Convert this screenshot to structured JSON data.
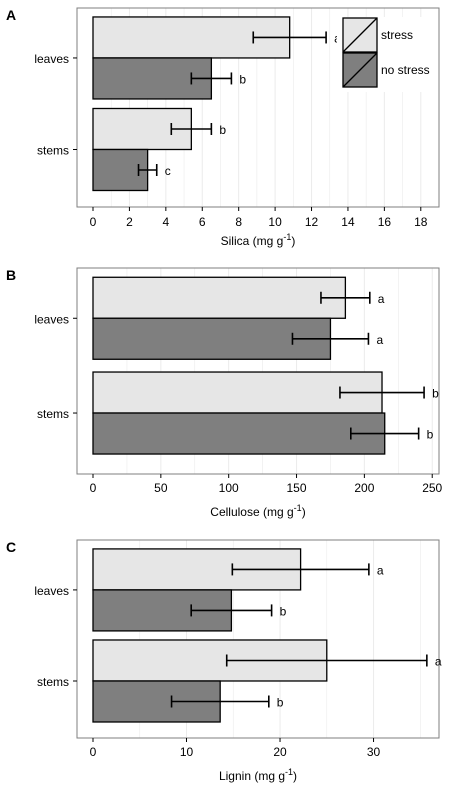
{
  "legend": {
    "entries": [
      {
        "label": "stress",
        "color": "#e6e6e6"
      },
      {
        "label": "no stress",
        "color": "#7f7f7f"
      }
    ],
    "position": "top-right"
  },
  "colors": {
    "stress": "#e6e6e6",
    "no_stress": "#7f7f7f",
    "panel_border": "#7f7f7f",
    "grid": "#ebebeb",
    "bar_outline": "#000000"
  },
  "chart_data": [
    {
      "panel": "A",
      "type": "bar",
      "orientation": "horizontal",
      "categories": [
        "leaves",
        "stems"
      ],
      "xlabel": "Silica (mg g",
      "xlabel_sup": "-1",
      "xlabel_end": ")",
      "xlim": [
        0,
        19
      ],
      "ticks": [
        0,
        2,
        4,
        6,
        8,
        10,
        12,
        14,
        16,
        18
      ],
      "grid": true,
      "series": [
        {
          "name": "stress",
          "values": [
            10.8,
            5.4
          ],
          "errors": [
            2.0,
            1.1
          ],
          "letters": [
            "a",
            "b"
          ]
        },
        {
          "name": "no stress",
          "values": [
            6.5,
            3.0
          ],
          "errors": [
            1.1,
            0.5
          ],
          "letters": [
            "b",
            "c"
          ]
        }
      ]
    },
    {
      "panel": "B",
      "type": "bar",
      "orientation": "horizontal",
      "categories": [
        "leaves",
        "stems"
      ],
      "xlabel": "Cellulose (mg g",
      "xlabel_sup": "-1",
      "xlabel_end": ")",
      "xlim": [
        0,
        255
      ],
      "ticks": [
        0,
        50,
        100,
        150,
        200,
        250
      ],
      "grid": true,
      "series": [
        {
          "name": "stress",
          "values": [
            186,
            213
          ],
          "errors": [
            18,
            31
          ],
          "letters": [
            "a",
            "b"
          ]
        },
        {
          "name": "no stress",
          "values": [
            175,
            215
          ],
          "errors": [
            28,
            25
          ],
          "letters": [
            "a",
            "b"
          ]
        }
      ]
    },
    {
      "panel": "C",
      "type": "bar",
      "orientation": "horizontal",
      "categories": [
        "leaves",
        "stems"
      ],
      "xlabel": "Lignin (mg g",
      "xlabel_sup": "-1",
      "xlabel_end": ")",
      "xlim": [
        0,
        37
      ],
      "ticks": [
        0,
        10,
        20,
        30
      ],
      "grid": true,
      "series": [
        {
          "name": "stress",
          "values": [
            22.2,
            25.0
          ],
          "errors": [
            7.3,
            10.7
          ],
          "letters": [
            "a",
            "a"
          ]
        },
        {
          "name": "no stress",
          "values": [
            14.8,
            13.6
          ],
          "errors": [
            4.3,
            5.2
          ],
          "letters": [
            "b",
            "b"
          ]
        }
      ]
    }
  ]
}
